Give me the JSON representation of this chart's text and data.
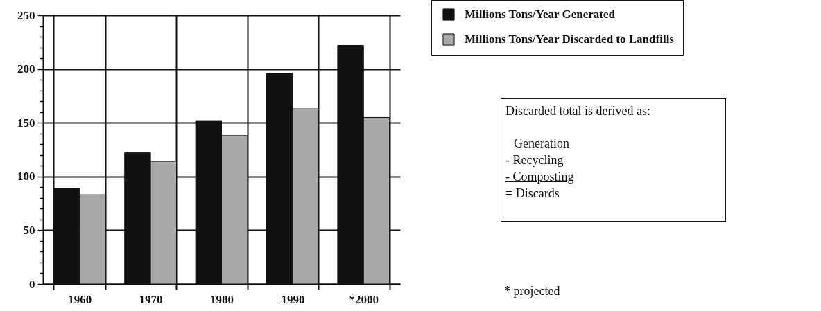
{
  "chart_data": {
    "type": "bar",
    "categories": [
      "1960",
      "1970",
      "1980",
      "1990",
      "*2000"
    ],
    "series": [
      {
        "name": "Millions Tons/Year Generated",
        "color": "#111111",
        "values": [
          89,
          122,
          152,
          196,
          222
        ]
      },
      {
        "name": "Millions Tons/Year Discarded to Landfills",
        "color": "#a9a9a9",
        "values": [
          83,
          114,
          138,
          163,
          155
        ]
      }
    ],
    "ylim": [
      0,
      250
    ],
    "yticks": [
      0,
      {
        "value": 10,
        "label": null
      },
      {
        "value": 20,
        "label": null
      },
      {
        "value": 30,
        "label": null
      },
      {
        "value": 40,
        "label": null
      },
      50,
      {
        "value": 60,
        "label": null
      },
      {
        "value": 70,
        "label": null
      },
      {
        "value": 80,
        "label": null
      },
      {
        "value": 90,
        "label": null
      },
      100,
      {
        "value": 110,
        "label": null
      },
      {
        "value": 120,
        "label": null
      },
      {
        "value": 130,
        "label": null
      },
      {
        "value": 140,
        "label": null
      },
      150,
      {
        "value": 160,
        "label": null
      },
      {
        "value": 170,
        "label": null
      },
      {
        "value": 180,
        "label": null
      },
      {
        "value": 190,
        "label": null
      },
      200,
      {
        "value": 210,
        "label": null
      },
      {
        "value": 220,
        "label": null
      },
      {
        "value": 230,
        "label": null
      },
      {
        "value": 240,
        "label": null
      },
      250
    ],
    "grid": true,
    "legend": "right",
    "annotations": [
      "Discarded total is derived as:",
      "Generation",
      "- Recycling",
      "- Composting",
      "= Discards",
      "* projected"
    ]
  }
}
